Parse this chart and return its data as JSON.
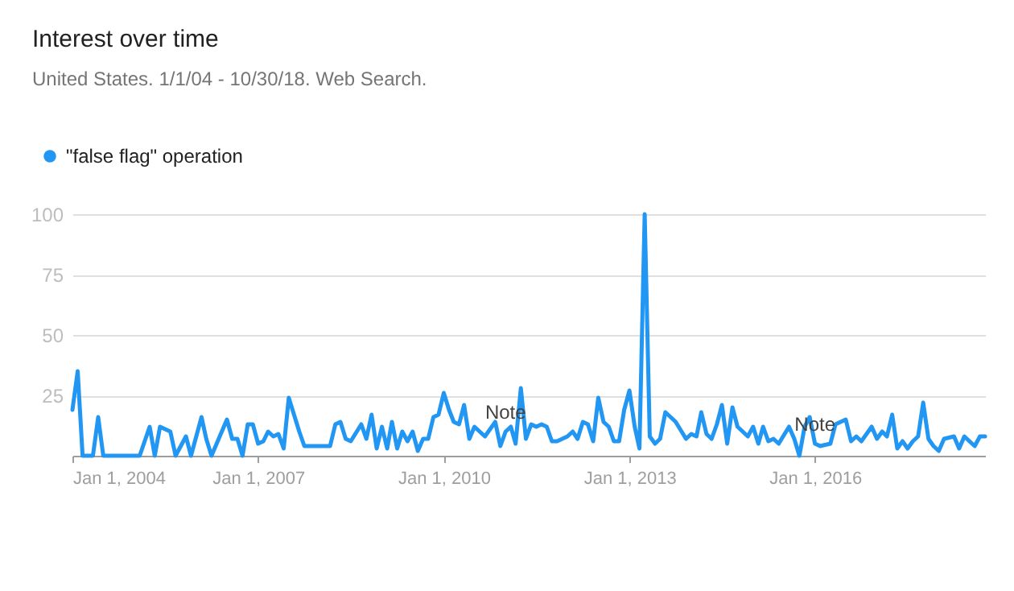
{
  "chart_data": {
    "type": "line",
    "title": "Interest over time",
    "subtitle": "United States. 1/1/04 - 10/30/18. Web Search.",
    "x": [
      "2004-01",
      "2004-02",
      "2004-03",
      "2004-05",
      "2004-06",
      "2004-07",
      "2005-02",
      "2005-04",
      "2005-05",
      "2005-06",
      "2005-08",
      "2005-09",
      "2005-11",
      "2005-12",
      "2006-02",
      "2006-03",
      "2006-04",
      "2006-07",
      "2006-08",
      "2006-09",
      "2006-10",
      "2006-11",
      "2006-12",
      "2007-01",
      "2007-02",
      "2007-03",
      "2007-04",
      "2007-05",
      "2007-06",
      "2007-07",
      "2007-08",
      "2007-09",
      "2007-10",
      "2008-03",
      "2008-04",
      "2008-05",
      "2008-06",
      "2008-07",
      "2008-09",
      "2008-10",
      "2008-11",
      "2008-12",
      "2009-01",
      "2009-02",
      "2009-03",
      "2009-04",
      "2009-05",
      "2009-06",
      "2009-07",
      "2009-08",
      "2009-09",
      "2009-10",
      "2009-11",
      "2009-12",
      "2010-01",
      "2010-02",
      "2010-03",
      "2010-04",
      "2010-05",
      "2010-06",
      "2010-07",
      "2010-08",
      "2010-09",
      "2010-11",
      "2010-12",
      "2011-01",
      "2011-02",
      "2011-03",
      "2011-04",
      "2011-05",
      "2011-06",
      "2011-07",
      "2011-08",
      "2011-09",
      "2011-10",
      "2011-11",
      "2012-01",
      "2012-02",
      "2012-03",
      "2012-04",
      "2012-05",
      "2012-06",
      "2012-07",
      "2012-08",
      "2012-09",
      "2012-10",
      "2012-11",
      "2012-12",
      "2013-01",
      "2013-02",
      "2013-03",
      "2013-04",
      "2013-05",
      "2013-06",
      "2013-07",
      "2013-08",
      "2013-09",
      "2013-10",
      "2013-12",
      "2014-01",
      "2014-02",
      "2014-03",
      "2014-04",
      "2014-05",
      "2014-06",
      "2014-07",
      "2014-08",
      "2014-09",
      "2014-10",
      "2014-12",
      "2015-01",
      "2015-02",
      "2015-03",
      "2015-04",
      "2015-05",
      "2015-06",
      "2015-08",
      "2015-09",
      "2015-10",
      "2015-11",
      "2015-12",
      "2016-01",
      "2016-02",
      "2016-04",
      "2016-05",
      "2016-07",
      "2016-08",
      "2016-09",
      "2016-10",
      "2016-12",
      "2017-01",
      "2017-02",
      "2017-03",
      "2017-04",
      "2017-05",
      "2017-06",
      "2017-07",
      "2017-08",
      "2017-09",
      "2017-10",
      "2017-11",
      "2017-12",
      "2018-01",
      "2018-02",
      "2018-04",
      "2018-05",
      "2018-06",
      "2018-07",
      "2018-08",
      "2018-09",
      "2018-10"
    ],
    "series": [
      {
        "name": "\"false flag\" operation",
        "color": "#2196f3",
        "values": [
          19,
          35,
          0,
          0,
          16,
          0,
          0,
          12,
          0,
          12,
          10,
          0,
          8,
          0,
          16,
          7,
          0,
          15,
          7,
          7,
          0,
          13,
          13,
          5,
          6,
          10,
          8,
          9,
          3,
          24,
          17,
          10,
          4,
          4,
          13,
          14,
          7,
          6,
          13,
          7,
          17,
          3,
          12,
          3,
          14,
          3,
          10,
          6,
          10,
          2,
          7,
          7,
          16,
          17,
          26,
          19,
          14,
          13,
          21,
          7,
          12,
          10,
          8,
          14,
          4,
          10,
          12,
          5,
          28,
          7,
          13,
          12,
          13,
          12,
          6,
          6,
          8,
          10,
          7,
          14,
          13,
          6,
          24,
          14,
          12,
          6,
          6,
          19,
          27,
          12,
          3,
          100,
          8,
          5,
          7,
          18,
          16,
          14,
          7,
          9,
          8,
          18,
          9,
          7,
          13,
          21,
          5,
          20,
          12,
          8,
          12,
          5,
          12,
          6,
          7,
          5,
          12,
          7,
          0,
          12,
          16,
          5,
          4,
          5,
          13,
          15,
          6,
          8,
          6,
          12,
          7,
          10,
          8,
          17,
          3,
          6,
          3,
          6,
          8,
          22,
          7,
          4,
          2,
          7,
          8,
          3,
          8,
          6,
          4,
          8,
          8
        ]
      }
    ],
    "xlim": [
      "2004-01",
      "2018-10"
    ],
    "xticks": [
      {
        "value": "2004-01-01",
        "label": "Jan 1, 2004"
      },
      {
        "value": "2007-01-01",
        "label": "Jan 1, 2007"
      },
      {
        "value": "2010-01-01",
        "label": "Jan 1, 2010"
      },
      {
        "value": "2013-01-01",
        "label": "Jan 1, 2013"
      },
      {
        "value": "2016-01-01",
        "label": "Jan 1, 2016"
      }
    ],
    "ylim": [
      0,
      100
    ],
    "yticks": [
      {
        "value": 0,
        "label": null
      },
      25,
      50,
      75,
      100
    ],
    "grid": "y",
    "legend": "top left",
    "annotations": [
      {
        "text": "Note",
        "x": "2011-01",
        "y": 10
      },
      {
        "text": "Note",
        "x": "2016-01",
        "y": 5
      }
    ]
  }
}
